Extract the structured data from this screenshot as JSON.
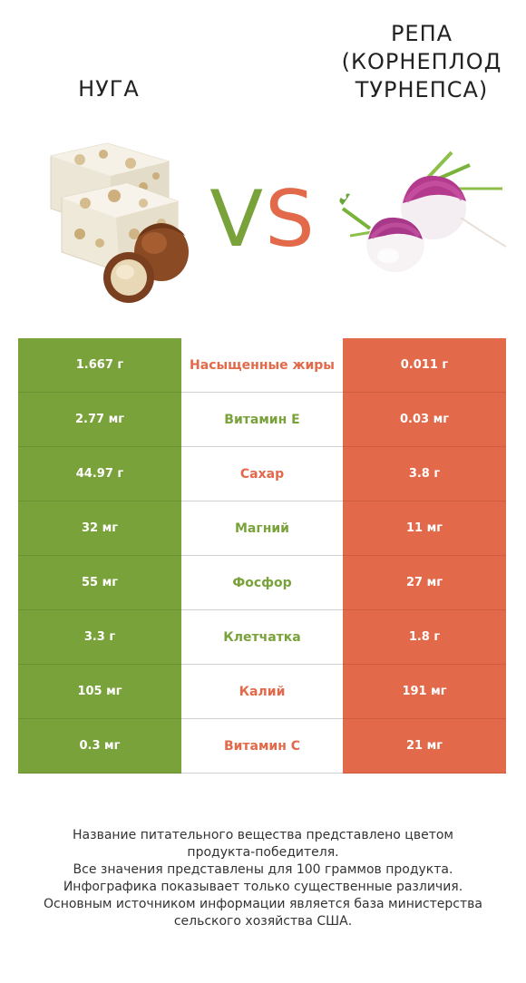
{
  "left_product": {
    "title": "НУГА",
    "color": "#7aa23b",
    "image": "nougat-with-hazelnuts"
  },
  "right_product": {
    "title_lines": [
      "РЕПА",
      "(КОРНЕПЛОД",
      "ТУРНЕПСА)"
    ],
    "color": "#e2694a",
    "image": "turnip"
  },
  "vs": {
    "v": "V",
    "s": "S"
  },
  "rows": [
    {
      "nutrient": "Насыщенные жиры",
      "left": "1.667 г",
      "right": "0.011 г",
      "winner": "right"
    },
    {
      "nutrient": "Витамин E",
      "left": "2.77 мг",
      "right": "0.03 мг",
      "winner": "left"
    },
    {
      "nutrient": "Сахар",
      "left": "44.97 г",
      "right": "3.8 г",
      "winner": "right"
    },
    {
      "nutrient": "Магний",
      "left": "32 мг",
      "right": "11 мг",
      "winner": "left"
    },
    {
      "nutrient": "Фосфор",
      "left": "55 мг",
      "right": "27 мг",
      "winner": "left"
    },
    {
      "nutrient": "Клетчатка",
      "left": "3.3 г",
      "right": "1.8 г",
      "winner": "left"
    },
    {
      "nutrient": "Калий",
      "left": "105 мг",
      "right": "191 мг",
      "winner": "right"
    },
    {
      "nutrient": "Витамин C",
      "left": "0.3 мг",
      "right": "21 мг",
      "winner": "right"
    }
  ],
  "footer": {
    "lines": [
      "Название питательного вещества представлено цветом",
      "продукта-победителя.",
      "Все значения представлены для 100 граммов продукта.",
      "Инфографика показывает только существенные различия.",
      "Основным источником информации является база министерства",
      "сельского хозяйства США."
    ]
  }
}
